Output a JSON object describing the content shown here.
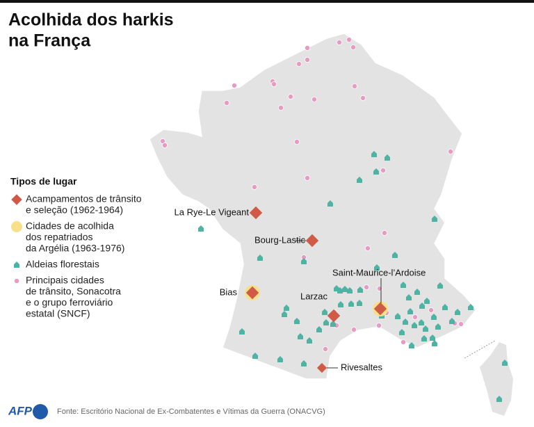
{
  "header": {
    "title_lines": [
      "Acolhida dos harkis",
      "na França"
    ]
  },
  "legend": {
    "title": "Tipos de lugar",
    "items": [
      {
        "lines": [
          "Acampamentos de trânsito",
          "e seleção (1962-1964)"
        ]
      },
      {
        "lines": [
          "Cidades de acolhida",
          "dos repatriados",
          "da Argélia (1963-1976)"
        ]
      },
      {
        "lines": [
          "Aldeias florestais"
        ]
      },
      {
        "lines": [
          "Principais cidades",
          "de trânsito, Sonacotra",
          "e o grupo ferroviário",
          "estatal (SNCF)"
        ]
      }
    ]
  },
  "places": [
    "La Rye-Le Vigeant",
    "Bourg-Lastic",
    "Saint-Maurice-l’Ardoise",
    "Bias",
    "Larzac",
    "Rivesaltes"
  ],
  "footer": {
    "logo": "AFP",
    "source": "Fonte: Escritório Nacional de Ex-Combatentes e Vítimas da Guerra (ONACVG)"
  }
}
